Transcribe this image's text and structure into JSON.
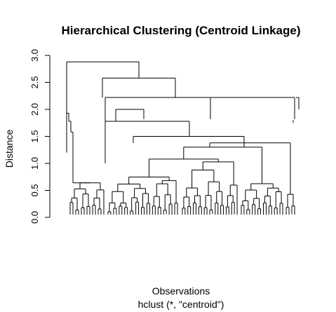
{
  "chart_data": {
    "type": "dendrogram",
    "title": "Hierarchical Clustering (Centroid Linkage)",
    "xlabel": "Observations",
    "sub": "hclust (*, \"centroid\")",
    "ylabel": "Distance",
    "yticks": [
      "0.0",
      "0.5",
      "1.0",
      "1.5",
      "2.0",
      "2.5",
      "3.0"
    ],
    "yticks_values": [
      0,
      0.5,
      1.0,
      1.5,
      2.0,
      2.5,
      3.0
    ],
    "ylim": [
      0,
      3.0
    ],
    "grid": false,
    "merges": [
      {
        "id": "top",
        "height": 2.88
      },
      {
        "id": "main",
        "height": 2.58
      },
      {
        "id": "right-big",
        "height": 2.22
      },
      {
        "id": "mid-left",
        "height": 2.0
      },
      {
        "id": "mid",
        "height": 1.82
      },
      {
        "id": "mid-lower",
        "height": 1.78
      },
      {
        "id": "lower",
        "height": 1.5
      },
      {
        "id": "right-arm",
        "height": 1.35
      },
      {
        "id": "core",
        "height": 1.25
      },
      {
        "id": "left-chain-top",
        "height": 1.93
      },
      {
        "id": "left-chain-2",
        "height": 1.78
      },
      {
        "id": "left-chain-3",
        "height": 1.58
      }
    ]
  }
}
